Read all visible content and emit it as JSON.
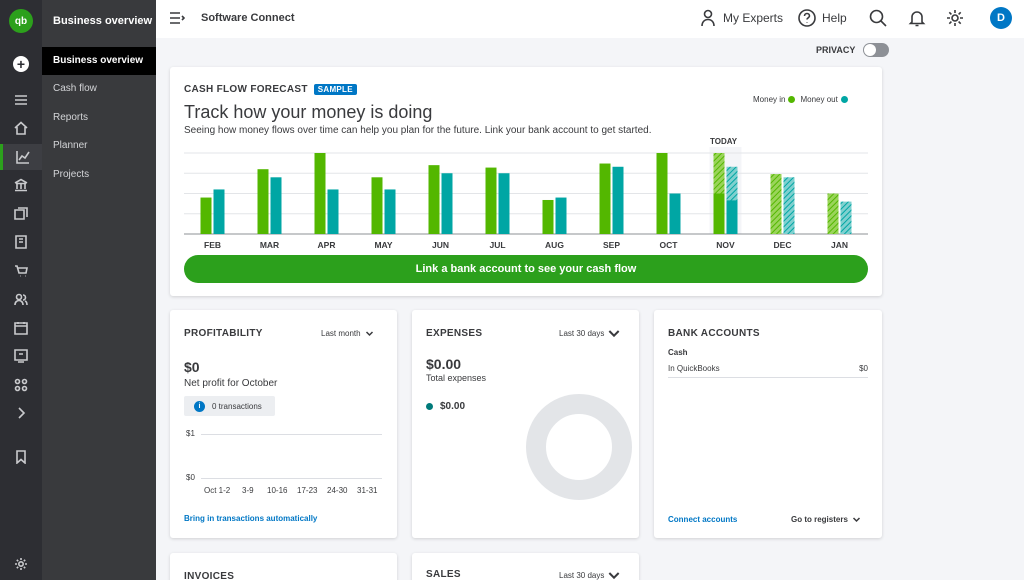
{
  "app": {
    "logo_text": "qb",
    "new_button": "+",
    "company_name": "Software Connect"
  },
  "subnav": {
    "title": "Business overview",
    "items": [
      {
        "label": "Business overview",
        "active": true
      },
      {
        "label": "Cash flow",
        "active": false
      },
      {
        "label": "Reports",
        "active": false
      },
      {
        "label": "Planner",
        "active": false
      },
      {
        "label": "Projects",
        "active": false
      }
    ]
  },
  "topbar": {
    "my_experts": "My Experts",
    "help": "Help",
    "avatar_initial": "D",
    "privacy_label": "PRIVACY",
    "privacy_on": false
  },
  "cash_flow": {
    "header": "CASH FLOW FORECAST",
    "badge": "SAMPLE",
    "headline": "Track how your money is doing",
    "subtext": "Seeing how money flows over time can help you plan for the future. Link your bank account to get started.",
    "legend_in": "Money in",
    "legend_out": "Money out",
    "today_label": "TODAY",
    "button": "Link a bank account to see your cash flow"
  },
  "chart_data": {
    "type": "bar",
    "categories": [
      "FEB",
      "MAR",
      "APR",
      "MAY",
      "JUN",
      "JUL",
      "AUG",
      "SEP",
      "OCT",
      "NOV",
      "DEC",
      "JAN"
    ],
    "series": [
      {
        "name": "Money in",
        "values": [
          45,
          80,
          100,
          70,
          85,
          82,
          42,
          87,
          100,
          100,
          74,
          50
        ],
        "color": "#53b700"
      },
      {
        "name": "Money out",
        "values": [
          55,
          70,
          55,
          55,
          75,
          75,
          45,
          83,
          50,
          83,
          70,
          40
        ],
        "color": "#00a6a4"
      }
    ],
    "forecast_from": "NOV",
    "ylim": [
      0,
      100
    ],
    "grid": true
  },
  "profitability": {
    "title": "PROFITABILITY",
    "period": "Last month",
    "amount": "$0",
    "label": "Net profit for October",
    "transactions": "0 transactions",
    "y_ticks": [
      "$1",
      "$0"
    ],
    "x_labels": [
      "Oct 1-2",
      "3-9",
      "10-16",
      "17-23",
      "24-30",
      "31-31"
    ],
    "link": "Bring in transactions automatically"
  },
  "expenses": {
    "title": "EXPENSES",
    "period": "Last 30 days",
    "amount": "$0.00",
    "label": "Total expenses",
    "row_amount": "$0.00"
  },
  "bank_accounts": {
    "title": "BANK ACCOUNTS",
    "section": "Cash",
    "account_name": "In QuickBooks",
    "account_value": "$0",
    "connect_link": "Connect accounts",
    "registers": "Go to registers"
  },
  "invoices": {
    "title": "INVOICES"
  },
  "sales": {
    "title": "SALES",
    "period": "Last 30 days"
  }
}
